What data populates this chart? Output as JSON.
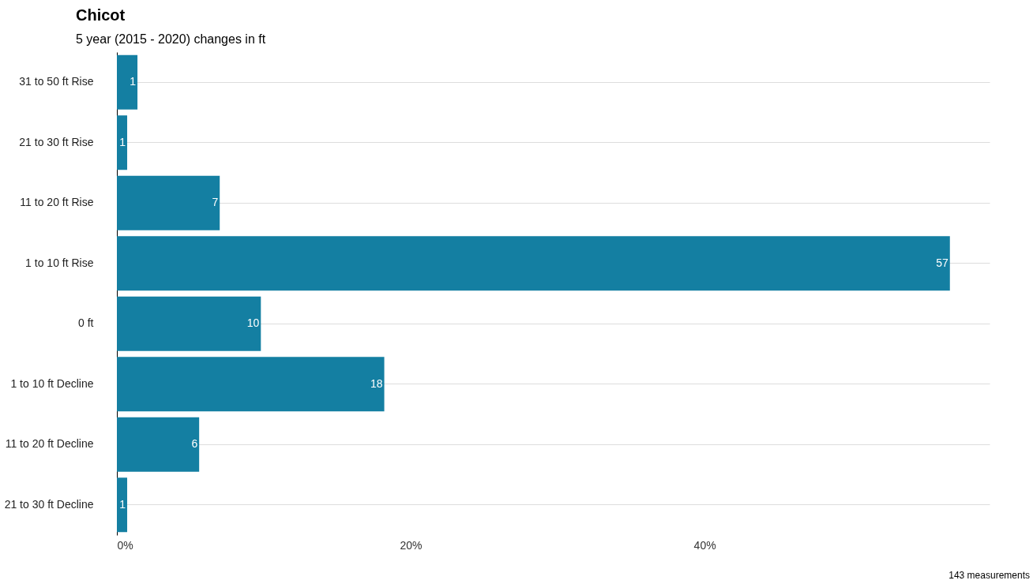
{
  "chart_data": {
    "type": "bar",
    "orientation": "horizontal",
    "title": "Chicot",
    "subtitle": "5 year (2015 - 2020) changes in ft",
    "categories": [
      "31 to 50 ft Rise",
      "21 to 30 ft Rise",
      "11 to 20 ft Rise",
      "1 to 10 ft Rise",
      "0 ft",
      "1 to 10 ft Decline",
      "11 to 20 ft Decline",
      "21 to 30 ft Decline"
    ],
    "values": [
      1.4,
      0.7,
      7.0,
      56.7,
      9.8,
      18.2,
      5.6,
      0.7
    ],
    "value_labels": [
      "1",
      "1",
      "7",
      "57",
      "10",
      "18",
      "6",
      "1"
    ],
    "color": "#147fa2",
    "xlim": [
      0,
      59.4
    ],
    "xticks": [
      {
        "value": 0,
        "label": "0%"
      },
      {
        "value": 20,
        "label": "20%"
      },
      {
        "value": 40,
        "label": "40%"
      }
    ],
    "grid": "y",
    "annotations": [
      "143 measurements"
    ]
  }
}
